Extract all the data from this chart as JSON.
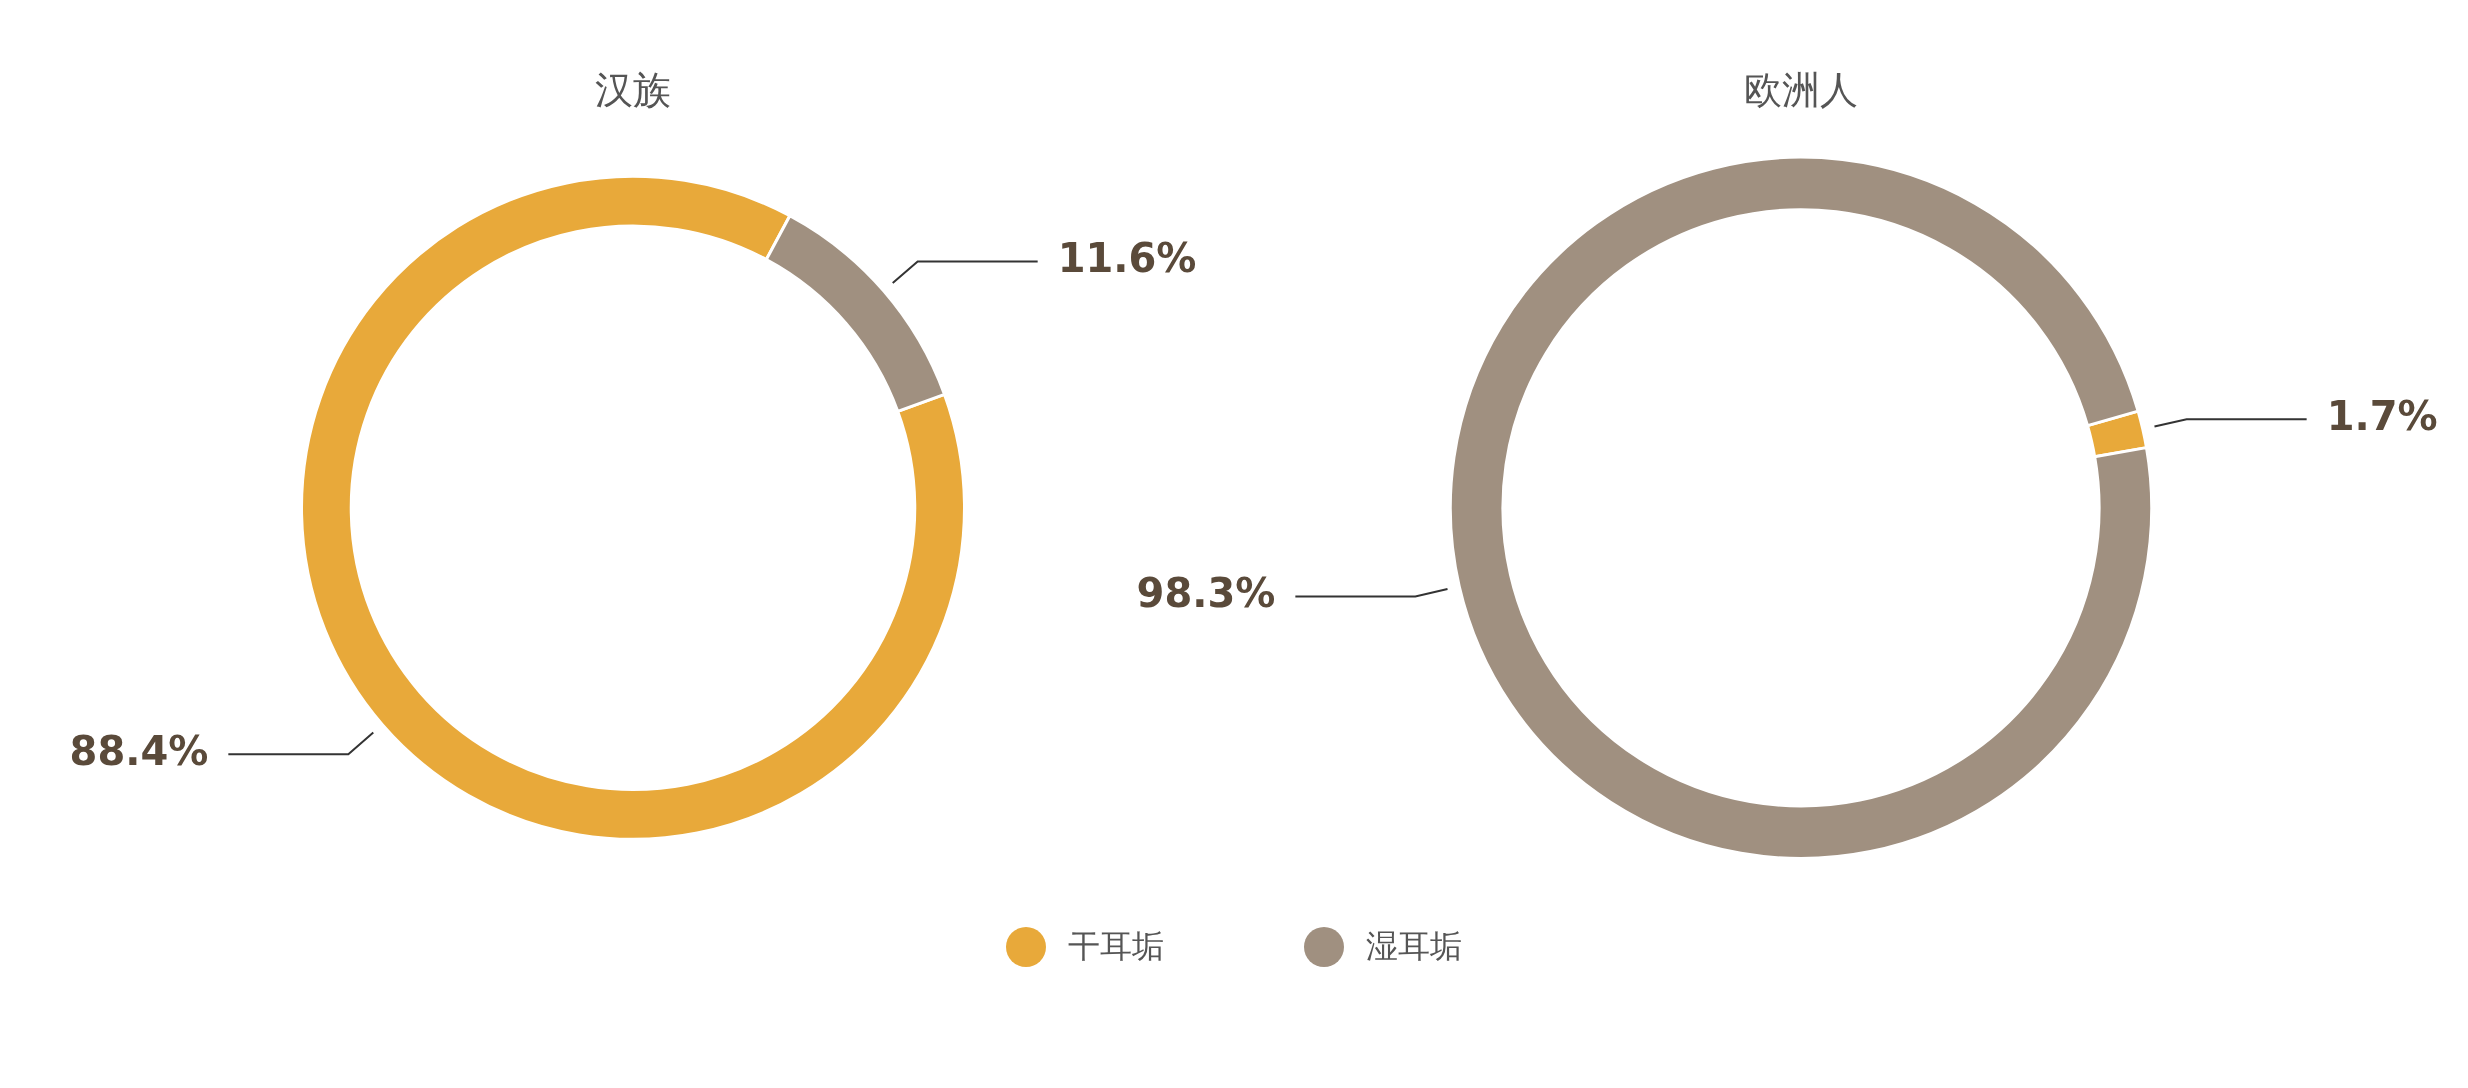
{
  "chart_data": [
    {
      "type": "donut",
      "title": "汉族",
      "categories": [
        "干耳垢",
        "湿耳垢"
      ],
      "values": [
        88.4,
        11.6
      ],
      "colors": [
        "#e8a93a",
        "#a09080"
      ],
      "value_labels": [
        "88.4%",
        "11.6%"
      ],
      "legend": "bottom"
    },
    {
      "type": "donut",
      "title": "欧洲人",
      "categories": [
        null,
        null
      ],
      "values": [
        1.7,
        98.3
      ],
      "colors": [
        "#e8a93a",
        "#a09080"
      ],
      "value_labels": [
        "1.7%",
        "98.3%"
      ]
    }
  ]
}
